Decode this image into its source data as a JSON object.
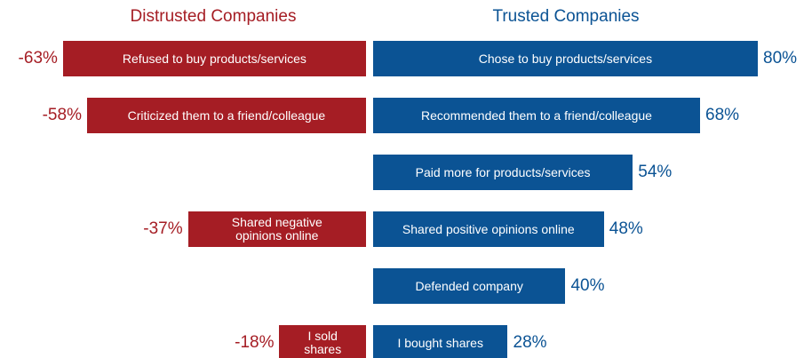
{
  "chart_data": {
    "type": "diverging-bar",
    "xlim": [
      -70,
      80
    ],
    "series": [
      {
        "name": "Distrusted Companies",
        "color": "#a51d24",
        "values": [
          -63,
          -58,
          null,
          -37,
          null,
          -18
        ],
        "value_labels": [
          "-63%",
          "-58%",
          null,
          "-37%",
          null,
          "-18%"
        ],
        "labels": [
          "Refused to buy products/services",
          "Criticized them to a friend/colleague",
          null,
          "Shared negative\nopinions online",
          null,
          "I sold\nshares"
        ]
      },
      {
        "name": "Trusted Companies",
        "color": "#0b5394",
        "values": [
          80,
          68,
          54,
          48,
          40,
          28
        ],
        "value_labels": [
          "80%",
          "68%",
          "54%",
          "48%",
          "40%",
          "28%"
        ],
        "labels": [
          "Chose to buy products/services",
          "Recommended them to a friend/colleague",
          "Paid more for products/services",
          "Shared positive opinions online",
          "Defended company",
          "I bought shares"
        ]
      }
    ]
  }
}
